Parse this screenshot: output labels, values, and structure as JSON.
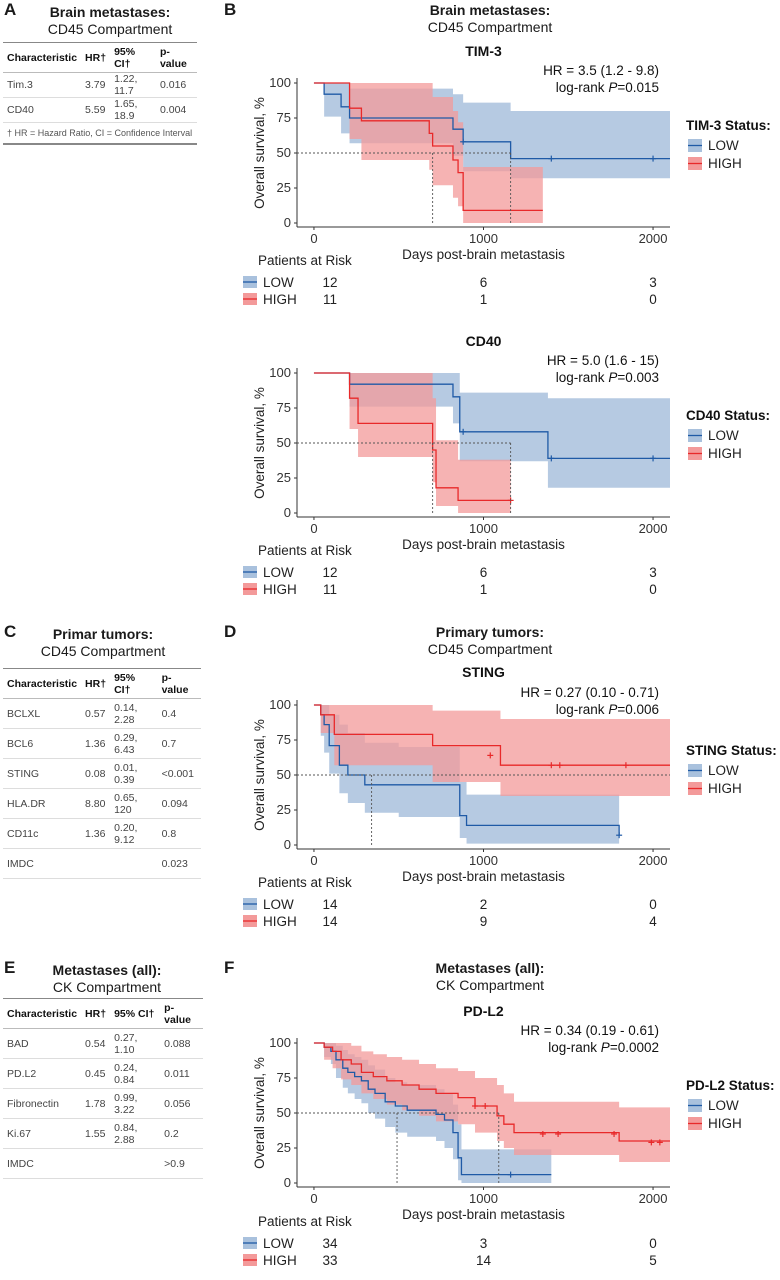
{
  "panels": {
    "A": {
      "label": "A",
      "title": "Brain metastases:",
      "subtitle": "CD45 Compartment",
      "columns": [
        "Characteristic",
        "HR†",
        "95% CI†",
        "p-value"
      ],
      "rows": [
        [
          "Tim.3",
          "3.79",
          "1.22, 11.7",
          "0.016"
        ],
        [
          "CD40",
          "5.59",
          "1.65, 18.9",
          "0.004"
        ]
      ],
      "footnote": "† HR = Hazard Ratio, CI = Confidence Interval"
    },
    "C": {
      "label": "C",
      "title": "Primar tumors:",
      "subtitle": "CD45 Compartment",
      "columns": [
        "Characteristic",
        "HR†",
        "95% CI†",
        "p-value"
      ],
      "rows": [
        [
          "BCLXL",
          "0.57",
          "0.14, 2.28",
          "0.4"
        ],
        [
          "BCL6",
          "1.36",
          "0.29, 6.43",
          "0.7"
        ],
        [
          "STING",
          "0.08",
          "0.01, 0.39",
          "<0.001"
        ],
        [
          "HLA.DR",
          "8.80",
          "0.65, 120",
          "0.094"
        ],
        [
          "CD11c",
          "1.36",
          "0.20, 9.12",
          "0.8"
        ],
        [
          "IMDC",
          "",
          "",
          "0.023"
        ]
      ]
    },
    "E": {
      "label": "E",
      "title": "Metastases (all):",
      "subtitle": "CK Compartment",
      "columns": [
        "Characteristic",
        "HR†",
        "95% CI†",
        "p-value"
      ],
      "rows": [
        [
          "BAD",
          "0.54",
          "0.27, 1.10",
          "0.088"
        ],
        [
          "PD.L2",
          "0.45",
          "0.24, 0.84",
          "0.011"
        ],
        [
          "Fibronectin",
          "1.78",
          "0.99, 3.22",
          "0.056"
        ],
        [
          "Ki.67",
          "1.55",
          "0.84, 2.88",
          "0.2"
        ],
        [
          "IMDC",
          "",
          "",
          ">0.9"
        ]
      ]
    },
    "B": {
      "label": "B",
      "title": "Brain metastases:",
      "subtitle": "CD45 Compartment"
    },
    "D": {
      "label": "D",
      "title": "Primary tumors:",
      "subtitle": "CD45 Compartment"
    },
    "F": {
      "label": "F",
      "title": "Metastases (all):",
      "subtitle": "CK Compartment"
    }
  },
  "colors": {
    "low": "#1f5aa6",
    "high": "#e8292a",
    "low_band": "#a9c1dd",
    "high_band": "#f39a9a"
  },
  "chart_data": [
    {
      "type": "line",
      "title": "TIM-3",
      "xlabel": "Days post-brain metastasis",
      "ylabel": "Overall survival, %",
      "xlim": [
        -100,
        2100
      ],
      "ylim": [
        0,
        100
      ],
      "xticks": [
        0,
        1000,
        2000
      ],
      "yticks": [
        0,
        25,
        50,
        75,
        100
      ],
      "annotation": [
        "HR = 3.5 (1.2 - 9.8)",
        "log-rank ",
        "P",
        "=0.015"
      ],
      "legend_title": "TIM-3 Status:",
      "legend": [
        "LOW",
        "HIGH"
      ],
      "median_low": 1160,
      "median_high": 700,
      "series": [
        {
          "name": "LOW",
          "x": [
            0,
            60,
            160,
            210,
            450,
            820,
            880,
            1160,
            2100
          ],
          "y": [
            100,
            92,
            83,
            75,
            75,
            67,
            58,
            46,
            46
          ],
          "upper": [
            100,
            100,
            100,
            96,
            96,
            92,
            86,
            80,
            80
          ],
          "lower": [
            100,
            76,
            64,
            57,
            57,
            48,
            37,
            32,
            32
          ],
          "censor": [
            [
              880,
              58
            ],
            [
              1400,
              46
            ],
            [
              2000,
              46
            ]
          ]
        },
        {
          "name": "HIGH",
          "x": [
            0,
            210,
            280,
            680,
            700,
            820,
            850,
            880,
            1350
          ],
          "y": [
            100,
            82,
            73,
            64,
            55,
            45,
            36,
            9,
            9
          ],
          "upper": [
            100,
            100,
            100,
            100,
            90,
            80,
            72,
            40,
            40
          ],
          "lower": [
            100,
            60,
            45,
            38,
            27,
            18,
            12,
            0,
            0
          ],
          "censor": []
        }
      ],
      "risk": {
        "title": "Patients at Risk",
        "times": [
          0,
          1000,
          2000
        ],
        "LOW": [
          12,
          6,
          3
        ],
        "HIGH": [
          11,
          1,
          0
        ]
      }
    },
    {
      "type": "line",
      "title": "CD40",
      "xlabel": "Days post-brain metastasis",
      "ylabel": "Overall survival, %",
      "xlim": [
        -100,
        2100
      ],
      "ylim": [
        0,
        100
      ],
      "xticks": [
        0,
        1000,
        2000
      ],
      "yticks": [
        0,
        25,
        50,
        75,
        100
      ],
      "annotation": [
        "HR = 5.0 (1.6 - 15)",
        "log-rank ",
        "P",
        "=0.003"
      ],
      "legend_title": "CD40 Status:",
      "legend": [
        "LOW",
        "HIGH"
      ],
      "median_low": 1160,
      "median_high": 700,
      "series": [
        {
          "name": "LOW",
          "x": [
            0,
            210,
            820,
            860,
            1160,
            1380,
            2100
          ],
          "y": [
            100,
            92,
            83,
            58,
            58,
            39,
            39
          ],
          "upper": [
            100,
            100,
            100,
            86,
            86,
            82,
            82
          ],
          "lower": [
            100,
            76,
            64,
            37,
            37,
            18,
            18
          ],
          "censor": [
            [
              880,
              58
            ],
            [
              1400,
              39
            ],
            [
              2000,
              39
            ]
          ]
        },
        {
          "name": "HIGH",
          "x": [
            0,
            210,
            260,
            700,
            720,
            850,
            1160
          ],
          "y": [
            100,
            82,
            64,
            45,
            18,
            9,
            9
          ],
          "upper": [
            100,
            100,
            100,
            82,
            52,
            38,
            38
          ],
          "lower": [
            100,
            60,
            40,
            22,
            5,
            0,
            0
          ],
          "censor": [
            [
              1160,
              9
            ]
          ]
        }
      ],
      "risk": {
        "title": "Patients at Risk",
        "times": [
          0,
          1000,
          2000
        ],
        "LOW": [
          12,
          6,
          3
        ],
        "HIGH": [
          11,
          1,
          0
        ]
      }
    },
    {
      "type": "line",
      "title": "STING",
      "xlabel": "Days post-brain metastasis",
      "ylabel": "Overall survival, %",
      "xlim": [
        -100,
        2100
      ],
      "ylim": [
        0,
        100
      ],
      "xticks": [
        0,
        1000,
        2000
      ],
      "yticks": [
        0,
        25,
        50,
        75,
        100
      ],
      "annotation": [
        "HR = 0.27 (0.10 - 0.71)",
        "log-rank ",
        "P",
        "=0.006"
      ],
      "legend_title": "STING Status:",
      "legend": [
        "LOW",
        "HIGH"
      ],
      "median_low": 340,
      "median_high": null,
      "series": [
        {
          "name": "LOW",
          "x": [
            0,
            40,
            60,
            90,
            150,
            200,
            300,
            500,
            700,
            860,
            900,
            1800
          ],
          "y": [
            100,
            93,
            86,
            71,
            57,
            50,
            43,
            43,
            43,
            21,
            14,
            7
          ],
          "upper": [
            100,
            100,
            100,
            93,
            86,
            80,
            73,
            70,
            70,
            45,
            36,
            28
          ],
          "lower": [
            100,
            78,
            66,
            51,
            37,
            30,
            23,
            20,
            20,
            5,
            1,
            0
          ],
          "censor": [
            [
              1800,
              7
            ]
          ]
        },
        {
          "name": "HIGH",
          "x": [
            0,
            40,
            120,
            700,
            1100,
            2100
          ],
          "y": [
            100,
            93,
            79,
            71,
            57,
            57
          ],
          "upper": [
            100,
            100,
            100,
            96,
            90,
            90
          ],
          "lower": [
            100,
            80,
            57,
            45,
            35,
            35
          ],
          "censor": [
            [
              1040,
              64
            ],
            [
              1400,
              57
            ],
            [
              1450,
              57
            ],
            [
              1840,
              57
            ]
          ]
        }
      ],
      "risk": {
        "title": "Patients at Risk",
        "times": [
          0,
          1000,
          2000
        ],
        "LOW": [
          14,
          2,
          0
        ],
        "HIGH": [
          14,
          9,
          4
        ]
      }
    },
    {
      "type": "line",
      "title": "PD-L2",
      "xlabel": "Days post-brain metastasis",
      "ylabel": "Overall survival, %",
      "xlim": [
        -100,
        2100
      ],
      "ylim": [
        0,
        100
      ],
      "xticks": [
        0,
        1000,
        2000
      ],
      "yticks": [
        0,
        25,
        50,
        75,
        100
      ],
      "annotation": [
        "HR = 0.34 (0.19 - 0.61)",
        "log-rank ",
        "P",
        "=0.0002"
      ],
      "legend_title": "PD-L2 Status:",
      "legend": [
        "LOW",
        "HIGH"
      ],
      "median_low": 490,
      "median_high": 1090,
      "series": [
        {
          "name": "LOW",
          "x": [
            0,
            60,
            100,
            130,
            170,
            200,
            240,
            280,
            320,
            360,
            420,
            480,
            550,
            650,
            720,
            770,
            820,
            850,
            870,
            1400
          ],
          "y": [
            100,
            97,
            94,
            88,
            82,
            79,
            76,
            73,
            67,
            64,
            58,
            55,
            52,
            52,
            49,
            45,
            36,
            18,
            6,
            6
          ],
          "upper": [
            100,
            100,
            100,
            98,
            95,
            92,
            90,
            88,
            84,
            81,
            75,
            72,
            70,
            70,
            67,
            64,
            56,
            42,
            24,
            24
          ],
          "lower": [
            100,
            90,
            85,
            75,
            68,
            64,
            60,
            57,
            50,
            46,
            40,
            36,
            33,
            33,
            30,
            25,
            17,
            2,
            0,
            0
          ],
          "censor": [
            [
              1160,
              6
            ]
          ]
        },
        {
          "name": "HIGH",
          "x": [
            0,
            60,
            110,
            160,
            220,
            280,
            350,
            430,
            520,
            620,
            720,
            850,
            950,
            1080,
            1120,
            1180,
            1800,
            2100
          ],
          "y": [
            100,
            97,
            94,
            88,
            85,
            79,
            76,
            73,
            70,
            67,
            64,
            61,
            55,
            48,
            42,
            36,
            30,
            30
          ],
          "upper": [
            100,
            100,
            100,
            100,
            98,
            94,
            92,
            90,
            88,
            85,
            82,
            80,
            75,
            70,
            64,
            58,
            54,
            54
          ],
          "lower": [
            100,
            88,
            82,
            74,
            70,
            64,
            60,
            56,
            52,
            48,
            44,
            42,
            36,
            30,
            25,
            20,
            15,
            15
          ],
          "censor": [
            [
              950,
              55
            ],
            [
              1010,
              55
            ],
            [
              1350,
              35
            ],
            [
              1440,
              35
            ],
            [
              1770,
              35
            ],
            [
              1990,
              29
            ],
            [
              2040,
              29
            ]
          ]
        }
      ],
      "risk": {
        "title": "Patients at Risk",
        "times": [
          0,
          1000,
          2000
        ],
        "LOW": [
          34,
          3,
          0
        ],
        "HIGH": [
          33,
          14,
          5
        ]
      }
    }
  ]
}
